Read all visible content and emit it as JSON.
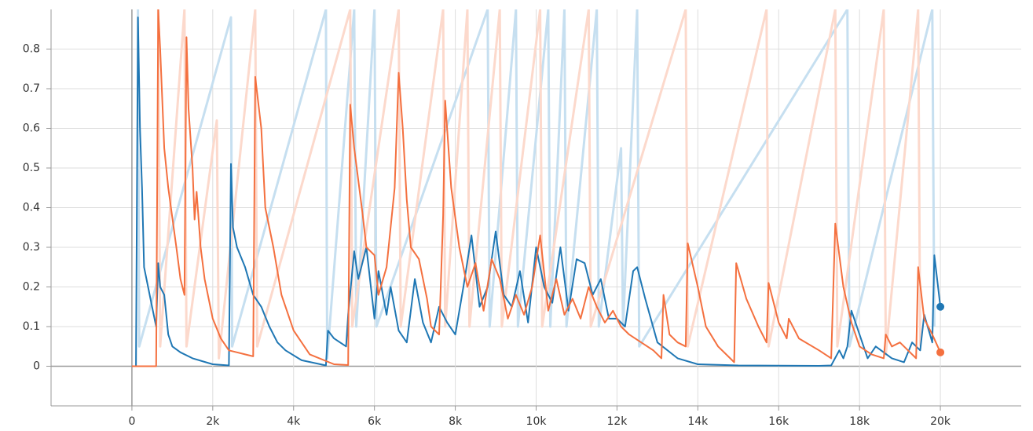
{
  "chart_data": {
    "type": "line",
    "xlim": [
      -2000,
      22000
    ],
    "xticks": [
      {
        "value": 0,
        "label": "0"
      },
      {
        "value": 2000,
        "label": "2k"
      },
      {
        "value": 4000,
        "label": "4k"
      },
      {
        "value": 6000,
        "label": "6k"
      },
      {
        "value": 8000,
        "label": "8k"
      },
      {
        "value": 10000,
        "label": "10k"
      },
      {
        "value": 12000,
        "label": "12k"
      },
      {
        "value": 14000,
        "label": "14k"
      },
      {
        "value": 16000,
        "label": "16k"
      },
      {
        "value": 18000,
        "label": "18k"
      },
      {
        "value": 20000,
        "label": "20k"
      }
    ],
    "ylim": [
      -0.1,
      0.9
    ],
    "yticks": [
      0,
      0.1,
      0.2,
      0.3,
      0.4,
      0.5,
      0.6,
      0.7,
      0.8
    ],
    "grid": true,
    "series": [
      {
        "color": "#c6dff0",
        "raw": true,
        "x": [
          150,
          180,
          2450,
          2480,
          4800,
          4830,
          5500,
          5550,
          6000,
          6050,
          8800,
          8850,
          9500,
          9550,
          10300,
          10350,
          10700,
          10750,
          11500,
          11550,
          12100,
          12150,
          12500,
          12550,
          17700,
          17750,
          19800,
          19850
        ],
        "values": [
          0.9,
          0.05,
          0.88,
          0.05,
          0.9,
          0.02,
          0.9,
          0.1,
          0.9,
          0.1,
          0.9,
          0.1,
          0.9,
          0.1,
          0.9,
          0.1,
          0.9,
          0.1,
          0.9,
          0.1,
          0.55,
          0.1,
          0.9,
          0.05,
          0.9,
          0.05,
          0.9,
          0.1
        ]
      },
      {
        "color": "#fcd9cc",
        "raw": true,
        "x": [
          650,
          700,
          1300,
          1350,
          2100,
          2150,
          3050,
          3100,
          5400,
          5450,
          6600,
          6650,
          7700,
          7750,
          8300,
          8350,
          9100,
          9150,
          10100,
          10150,
          11300,
          11350,
          13700,
          13750,
          15700,
          15750,
          17400,
          17450,
          18600,
          18650,
          19450,
          19500
        ],
        "values": [
          0.9,
          0.05,
          0.9,
          0.05,
          0.62,
          0.02,
          0.9,
          0.05,
          0.9,
          0.1,
          0.9,
          0.1,
          0.9,
          0.1,
          0.9,
          0.1,
          0.9,
          0.1,
          0.9,
          0.1,
          0.9,
          0.1,
          0.9,
          0.05,
          0.9,
          0.05,
          0.9,
          0.05,
          0.9,
          0.03,
          0.9,
          0.05
        ]
      },
      {
        "color": "#1f77b4",
        "x": [
          0,
          100,
          150,
          200,
          250,
          300,
          400,
          500,
          600,
          650,
          700,
          800,
          900,
          1000,
          1200,
          1500,
          2000,
          2400,
          2450,
          2500,
          2600,
          2800,
          3000,
          3200,
          3400,
          3600,
          3800,
          4200,
          4800,
          4850,
          5000,
          5300,
          5350,
          5500,
          5600,
          5800,
          6000,
          6100,
          6300,
          6400,
          6600,
          6800,
          7000,
          7200,
          7400,
          7600,
          7800,
          8000,
          8200,
          8400,
          8600,
          8800,
          9000,
          9200,
          9400,
          9600,
          9800,
          10000,
          10200,
          10400,
          10600,
          10800,
          11000,
          11200,
          11400,
          11600,
          11800,
          12000,
          12200,
          12400,
          12500,
          12700,
          13000,
          13500,
          14000,
          15000,
          17000,
          17300,
          17500,
          17600,
          17700,
          17800,
          18000,
          18200,
          18400,
          18800,
          19100,
          19300,
          19500,
          19600,
          19800,
          19850,
          20000
        ],
        "values": [
          0,
          0,
          0.88,
          0.6,
          0.45,
          0.25,
          0.2,
          0.15,
          0.1,
          0.26,
          0.2,
          0.18,
          0.08,
          0.05,
          0.035,
          0.02,
          0.005,
          0.002,
          0.51,
          0.35,
          0.3,
          0.25,
          0.18,
          0.15,
          0.1,
          0.06,
          0.04,
          0.015,
          0.002,
          0.09,
          0.07,
          0.05,
          0.13,
          0.29,
          0.22,
          0.3,
          0.12,
          0.24,
          0.13,
          0.2,
          0.09,
          0.06,
          0.22,
          0.11,
          0.06,
          0.15,
          0.11,
          0.08,
          0.2,
          0.33,
          0.15,
          0.2,
          0.34,
          0.18,
          0.15,
          0.24,
          0.11,
          0.3,
          0.2,
          0.16,
          0.3,
          0.14,
          0.27,
          0.26,
          0.18,
          0.22,
          0.12,
          0.12,
          0.1,
          0.24,
          0.25,
          0.17,
          0.06,
          0.02,
          0.005,
          0.002,
          0.001,
          0.002,
          0.04,
          0.02,
          0.05,
          0.14,
          0.08,
          0.02,
          0.05,
          0.02,
          0.01,
          0.06,
          0.04,
          0.13,
          0.06,
          0.28,
          0.15
        ]
      },
      {
        "color": "#f4703f",
        "x": [
          0,
          600,
          650,
          700,
          800,
          900,
          1100,
          1200,
          1300,
          1350,
          1400,
          1500,
          1550,
          1600,
          1700,
          1800,
          2000,
          2200,
          2400,
          2600,
          2800,
          3000,
          3050,
          3200,
          3300,
          3500,
          3700,
          4000,
          4400,
          5000,
          5350,
          5400,
          5500,
          5700,
          5800,
          6000,
          6100,
          6300,
          6500,
          6600,
          6700,
          6800,
          6900,
          7100,
          7300,
          7400,
          7600,
          7700,
          7750,
          7900,
          8100,
          8300,
          8500,
          8700,
          8900,
          9100,
          9300,
          9500,
          9700,
          9900,
          10100,
          10300,
          10500,
          10700,
          10900,
          11100,
          11300,
          11500,
          11700,
          11900,
          12100,
          12300,
          12600,
          12900,
          13100,
          13150,
          13300,
          13500,
          13700,
          13750,
          14000,
          14200,
          14500,
          14800,
          14900,
          14950,
          15200,
          15500,
          15700,
          15750,
          16000,
          16200,
          16250,
          16500,
          17000,
          17300,
          17400,
          17600,
          17800,
          18000,
          18300,
          18600,
          18650,
          18800,
          19000,
          19200,
          19400,
          19450,
          19600,
          19800,
          20000
        ],
        "values": [
          0,
          0,
          0.9,
          0.8,
          0.55,
          0.45,
          0.3,
          0.22,
          0.18,
          0.83,
          0.65,
          0.5,
          0.37,
          0.44,
          0.3,
          0.22,
          0.12,
          0.07,
          0.04,
          0.035,
          0.03,
          0.025,
          0.73,
          0.6,
          0.4,
          0.3,
          0.18,
          0.09,
          0.03,
          0.005,
          0.003,
          0.66,
          0.55,
          0.39,
          0.3,
          0.28,
          0.18,
          0.25,
          0.45,
          0.74,
          0.6,
          0.42,
          0.3,
          0.27,
          0.17,
          0.1,
          0.08,
          0.38,
          0.67,
          0.45,
          0.3,
          0.2,
          0.26,
          0.14,
          0.27,
          0.22,
          0.12,
          0.18,
          0.13,
          0.2,
          0.33,
          0.14,
          0.22,
          0.13,
          0.17,
          0.12,
          0.2,
          0.15,
          0.11,
          0.14,
          0.1,
          0.08,
          0.06,
          0.04,
          0.02,
          0.18,
          0.08,
          0.06,
          0.05,
          0.31,
          0.2,
          0.1,
          0.05,
          0.02,
          0.01,
          0.26,
          0.17,
          0.1,
          0.06,
          0.21,
          0.11,
          0.07,
          0.12,
          0.07,
          0.04,
          0.02,
          0.36,
          0.2,
          0.11,
          0.05,
          0.03,
          0.02,
          0.08,
          0.05,
          0.06,
          0.04,
          0.02,
          0.25,
          0.12,
          0.08,
          0.035
        ]
      }
    ]
  }
}
